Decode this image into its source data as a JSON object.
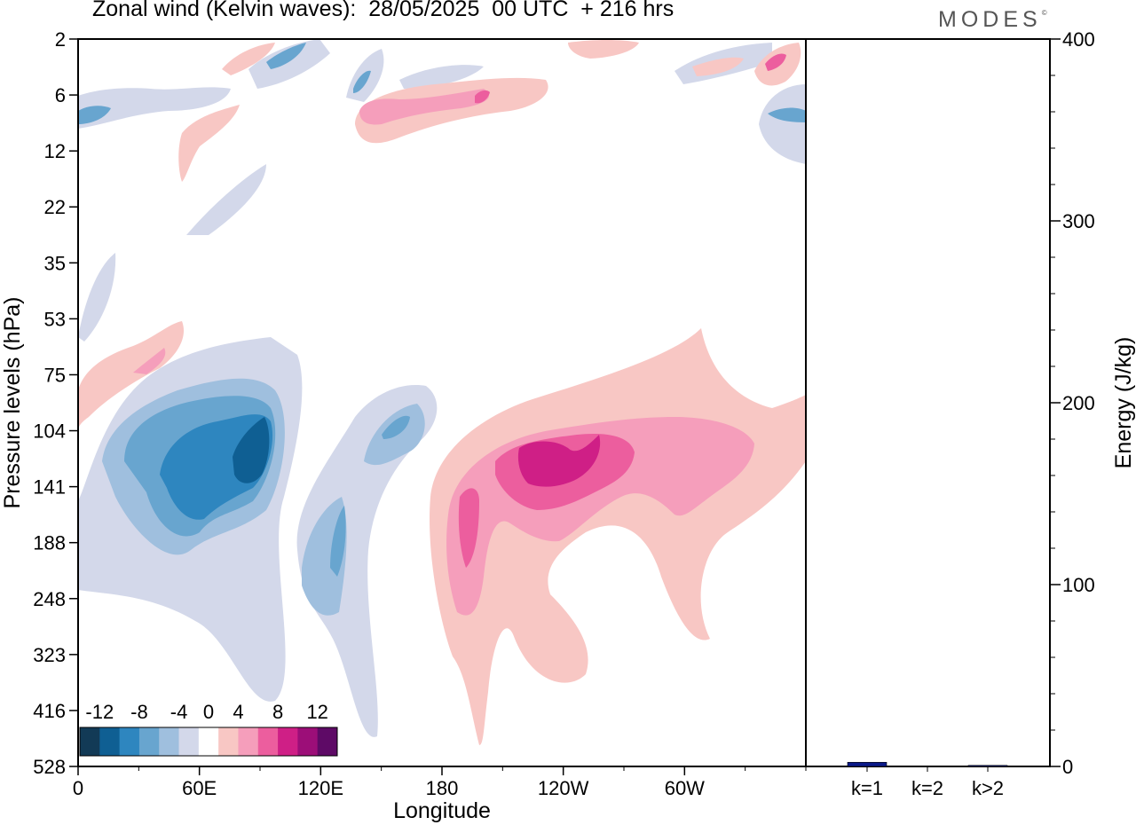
{
  "header": {
    "title": "Zonal wind (Kelvin waves):  28/05/2025  00 UTC  + 216 hrs",
    "logo": "MODES",
    "logo_mark": "©"
  },
  "chart_data": [
    {
      "type": "heatmap",
      "variable": "Zonal wind (Kelvin waves)",
      "xlabel": "Longitude",
      "ylabel": "Pressure levels (hPa)",
      "x_ticks": [
        "0",
        "60E",
        "120E",
        "180",
        "120W",
        "60W"
      ],
      "x_tick_degrees": [
        0,
        60,
        120,
        180,
        240,
        300
      ],
      "xlim": [
        0,
        360
      ],
      "y_ticks": [
        "2",
        "6",
        "12",
        "22",
        "35",
        "53",
        "75",
        "104",
        "141",
        "188",
        "248",
        "323",
        "416",
        "528"
      ],
      "colorbar": {
        "labels": [
          "-12",
          "-8",
          "-4",
          "0",
          "4",
          "8",
          "12"
        ],
        "levels": [
          -14,
          -12,
          -10,
          -8,
          -6,
          -4,
          -2,
          2,
          4,
          6,
          8,
          10,
          12,
          14
        ],
        "colors": [
          "#123a56",
          "#0f5f93",
          "#2e86bf",
          "#68a5cf",
          "#9fbfde",
          "#d3d8ea",
          "#ffffff",
          "#f8c7c4",
          "#f59ebb",
          "#ec5e9e",
          "#cf1f86",
          "#9c0e78",
          "#5e0a66"
        ]
      },
      "features": [
        {
          "sign": "negative",
          "min_value": -12,
          "lon": [
            20,
            110
          ],
          "pressure_hPa": [
            104,
            248
          ]
        },
        {
          "sign": "negative",
          "min_value": -6,
          "lon": [
            110,
            135
          ],
          "pressure_hPa": [
            141,
            248
          ]
        },
        {
          "sign": "negative",
          "min_value": -6,
          "lon": [
            140,
            170
          ],
          "pressure_hPa": [
            104,
            141
          ]
        },
        {
          "sign": "positive",
          "max_value": 8,
          "lon": [
            175,
            310
          ],
          "pressure_hPa": [
            104,
            248
          ]
        },
        {
          "sign": "positive",
          "max_value": 4,
          "lon": [
            0,
            50
          ],
          "pressure_hPa": [
            53,
            104
          ]
        },
        {
          "sign": "positive",
          "max_value": 8,
          "lon": [
            130,
            220
          ],
          "pressure_hPa": [
            6,
            12
          ]
        },
        {
          "sign": "negative",
          "max_value": -6,
          "lon": [
            0,
            130
          ],
          "pressure_hPa": [
            2,
            12
          ]
        }
      ]
    },
    {
      "type": "bar",
      "categories": [
        "k=1",
        "k=2",
        "k>2"
      ],
      "values": [
        2.3,
        0.0,
        0.6
      ],
      "colors": [
        "#0b1a8a",
        "#0b1a8a",
        "#0b1a8a"
      ],
      "ylabel": "Energy (J/kg)",
      "ylim": [
        0,
        400
      ],
      "y_ticks": [
        "0",
        "100",
        "200",
        "300",
        "400"
      ]
    }
  ]
}
